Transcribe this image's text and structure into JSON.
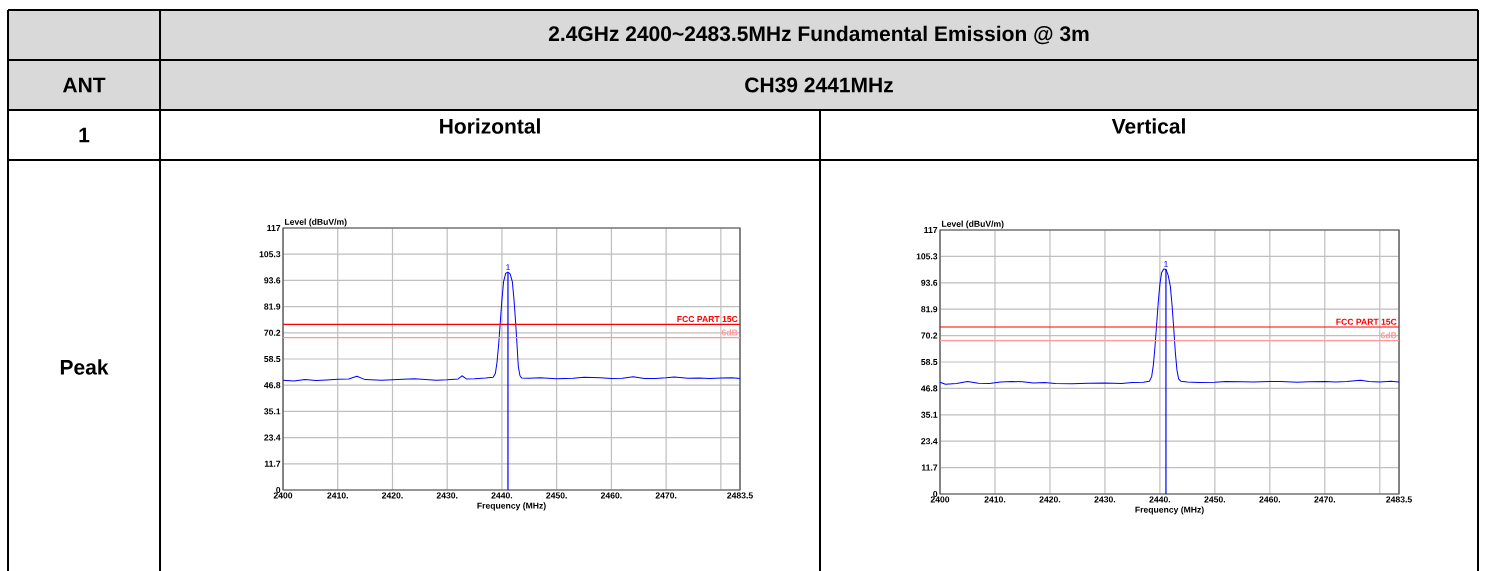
{
  "chart_data": [
    {
      "type": "other",
      "title": "2.4GHz 2400~2483.5MHz Fundamental Emission @ 3m",
      "annotations": [
        "ANT",
        "CH39 2441MHz",
        "1",
        "Peak"
      ]
    },
    {
      "type": "line",
      "title": "Horizontal",
      "xlabel": "Frequency (MHz)",
      "ylabel": "Level (dBuV/m)",
      "grid": true,
      "xlim": [
        2400,
        2483.5
      ],
      "ylim": [
        0,
        117
      ],
      "xticks": [
        2400,
        {
          "value": 2410,
          "label": "2410."
        },
        {
          "value": 2420,
          "label": "2420."
        },
        {
          "value": 2430,
          "label": "2430."
        },
        {
          "value": 2440,
          "label": "2440."
        },
        {
          "value": 2450,
          "label": "2450."
        },
        {
          "value": 2460,
          "label": "2460."
        },
        {
          "value": 2470,
          "label": "2470."
        },
        {
          "value": 2480,
          "label": null
        },
        2483.5
      ],
      "yticks": [
        0,
        11.7,
        23.4,
        35.1,
        46.8,
        58.5,
        70.2,
        81.9,
        93.6,
        105.3,
        117
      ],
      "x": [
        2400,
        2402,
        2404,
        2406,
        2408,
        2410,
        2412,
        2413.5,
        2415,
        2418,
        2420,
        2422,
        2424,
        2426,
        2428,
        2430,
        2432,
        2432.7,
        2433.5,
        2435,
        2437,
        2438.4,
        2438.8,
        2439.1,
        2439.4,
        2439.7,
        2440.0,
        2440.3,
        2440.7,
        2441.1,
        2441.5,
        2441.9,
        2442.2,
        2442.5,
        2442.8,
        2443.0,
        2443.3,
        2443.6,
        2445,
        2447,
        2450,
        2453,
        2455,
        2458,
        2460,
        2462,
        2464,
        2466,
        2468,
        2470,
        2471.5,
        2474,
        2476,
        2478,
        2480,
        2482,
        2483.5
      ],
      "series": [
        {
          "color": "#0000ff",
          "values": [
            49.0,
            48.7,
            49.3,
            48.9,
            49.1,
            49.4,
            49.6,
            50.8,
            49.3,
            49.0,
            49.2,
            49.5,
            49.7,
            49.3,
            49.0,
            49.2,
            49.6,
            51.0,
            49.6,
            49.7,
            50.0,
            50.3,
            52,
            57,
            65,
            75,
            85,
            93,
            96.8,
            97.3,
            96.5,
            93,
            85,
            75,
            63,
            55,
            51,
            50,
            49.9,
            50.1,
            49.7,
            49.9,
            50.3,
            50.1,
            49.8,
            49.9,
            50.6,
            49.8,
            49.8,
            50.1,
            50.5,
            49.9,
            50.0,
            49.8,
            50.0,
            50.1,
            49.8
          ]
        }
      ],
      "ref_lines": [
        {
          "axis": "y",
          "value": 74,
          "label": "FCC PART 15C",
          "color": "#ff0000"
        },
        {
          "axis": "y",
          "value": 68,
          "label": "6dB",
          "color": "#ff9999"
        },
        {
          "axis": "x",
          "value": 2441.1,
          "color": "#0000ff"
        }
      ],
      "annotations": [
        {
          "text": "1",
          "x": 2441.1,
          "y": 97.3
        }
      ]
    },
    {
      "type": "line",
      "title": "Vertical",
      "xlabel": "Frequency (MHz)",
      "ylabel": "Level (dBuV/m)",
      "grid": true,
      "xlim": [
        2400,
        2483.5
      ],
      "ylim": [
        0,
        117
      ],
      "xticks": [
        2400,
        {
          "value": 2410,
          "label": "2410."
        },
        {
          "value": 2420,
          "label": "2420."
        },
        {
          "value": 2430,
          "label": "2430."
        },
        {
          "value": 2440,
          "label": "2440."
        },
        {
          "value": 2450,
          "label": "2450."
        },
        {
          "value": 2460,
          "label": "2460."
        },
        {
          "value": 2470,
          "label": "2470."
        },
        {
          "value": 2480,
          "label": null
        },
        2483.5
      ],
      "yticks": [
        0,
        11.7,
        23.4,
        35.1,
        46.8,
        58.5,
        70.2,
        81.9,
        93.6,
        105.3,
        117
      ],
      "x": [
        2400,
        2401,
        2403,
        2405,
        2407,
        2409,
        2411,
        2413,
        2415,
        2417,
        2419,
        2421,
        2424,
        2427,
        2430,
        2433,
        2435,
        2437,
        2438.1,
        2438.5,
        2438.8,
        2439.1,
        2439.4,
        2439.7,
        2440.0,
        2440.3,
        2440.7,
        2441.1,
        2441.5,
        2441.9,
        2442.2,
        2442.5,
        2442.8,
        2443.1,
        2443.4,
        2443.8,
        2445,
        2447,
        2450,
        2452,
        2455,
        2457,
        2460,
        2462,
        2465,
        2467,
        2470,
        2472,
        2474,
        2476.5,
        2478,
        2480,
        2482,
        2483.5
      ],
      "series": [
        {
          "color": "#0000ff",
          "values": [
            49.5,
            48.6,
            49.0,
            49.8,
            49.1,
            49.0,
            49.6,
            49.9,
            49.7,
            49.2,
            49.4,
            49.0,
            48.9,
            49.1,
            49.2,
            49.0,
            49.4,
            49.5,
            50.0,
            52,
            57,
            65,
            75,
            85,
            93,
            98,
            99.7,
            99.5,
            97,
            92,
            84,
            74,
            63,
            55,
            51,
            50,
            49.6,
            49.4,
            49.5,
            49.9,
            49.7,
            49.6,
            49.9,
            49.8,
            49.5,
            49.7,
            49.9,
            49.6,
            49.8,
            50.4,
            49.8,
            49.6,
            50.0,
            49.6
          ]
        }
      ],
      "ref_lines": [
        {
          "axis": "y",
          "value": 74,
          "label": "FCC PART 15C",
          "color": "#ff0000"
        },
        {
          "axis": "y",
          "value": 68,
          "label": "6dB",
          "color": "#ff9999"
        },
        {
          "axis": "x",
          "value": 2441.1,
          "color": "#0000ff"
        }
      ],
      "annotations": [
        {
          "text": "1",
          "x": 2441.1,
          "y": 99.7
        }
      ]
    }
  ]
}
